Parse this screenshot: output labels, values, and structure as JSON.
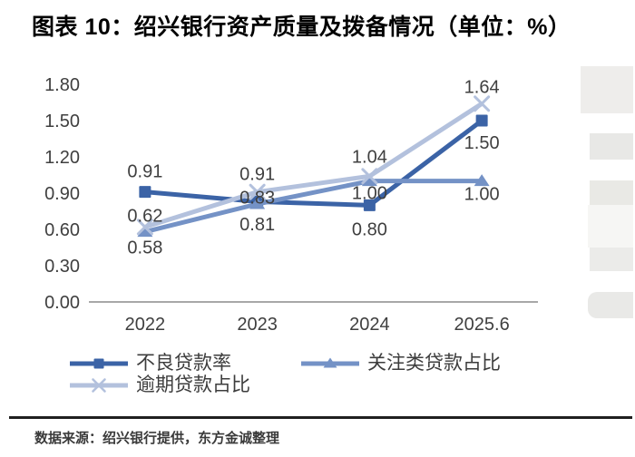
{
  "page": {
    "title": "图表 10：绍兴银行资产质量及拨备情况（单位：%）",
    "source": "数据来源：绍兴银行提供，东方金诚整理"
  },
  "chart_data": {
    "type": "line",
    "title": "绍兴银行资产质量及拨备情况",
    "unit": "%",
    "categories": [
      "2022",
      "2023",
      "2024",
      "2025.6"
    ],
    "series": [
      {
        "name": "不良贷款率",
        "marker": "square",
        "color": "#3b63a6",
        "values": [
          0.91,
          0.83,
          0.8,
          1.5
        ],
        "label_dy": [
          -23,
          -5,
          26,
          24
        ]
      },
      {
        "name": "关注类贷款占比",
        "marker": "triangle",
        "color": "#7492c6",
        "values": [
          0.58,
          0.81,
          1.0,
          1.0
        ],
        "label_dy": [
          17,
          22,
          13,
          14
        ]
      },
      {
        "name": "逾期贷款占比",
        "marker": "x",
        "color": "#b3c1dd",
        "values": [
          0.62,
          0.91,
          1.04,
          1.64
        ],
        "label_dy": [
          -13,
          -20,
          -22,
          -19
        ]
      }
    ],
    "y_ticks": [
      0.0,
      0.3,
      0.6,
      0.9,
      1.2,
      1.5,
      1.8
    ],
    "ylim": [
      0,
      1.8
    ],
    "xlabel": "",
    "ylabel": "",
    "grid": false,
    "legend_position": "bottom-left",
    "axis_color": "#8c8c8c",
    "tick_label_color": "#3f3f3f",
    "value_label_color": "#3f3f3f"
  }
}
